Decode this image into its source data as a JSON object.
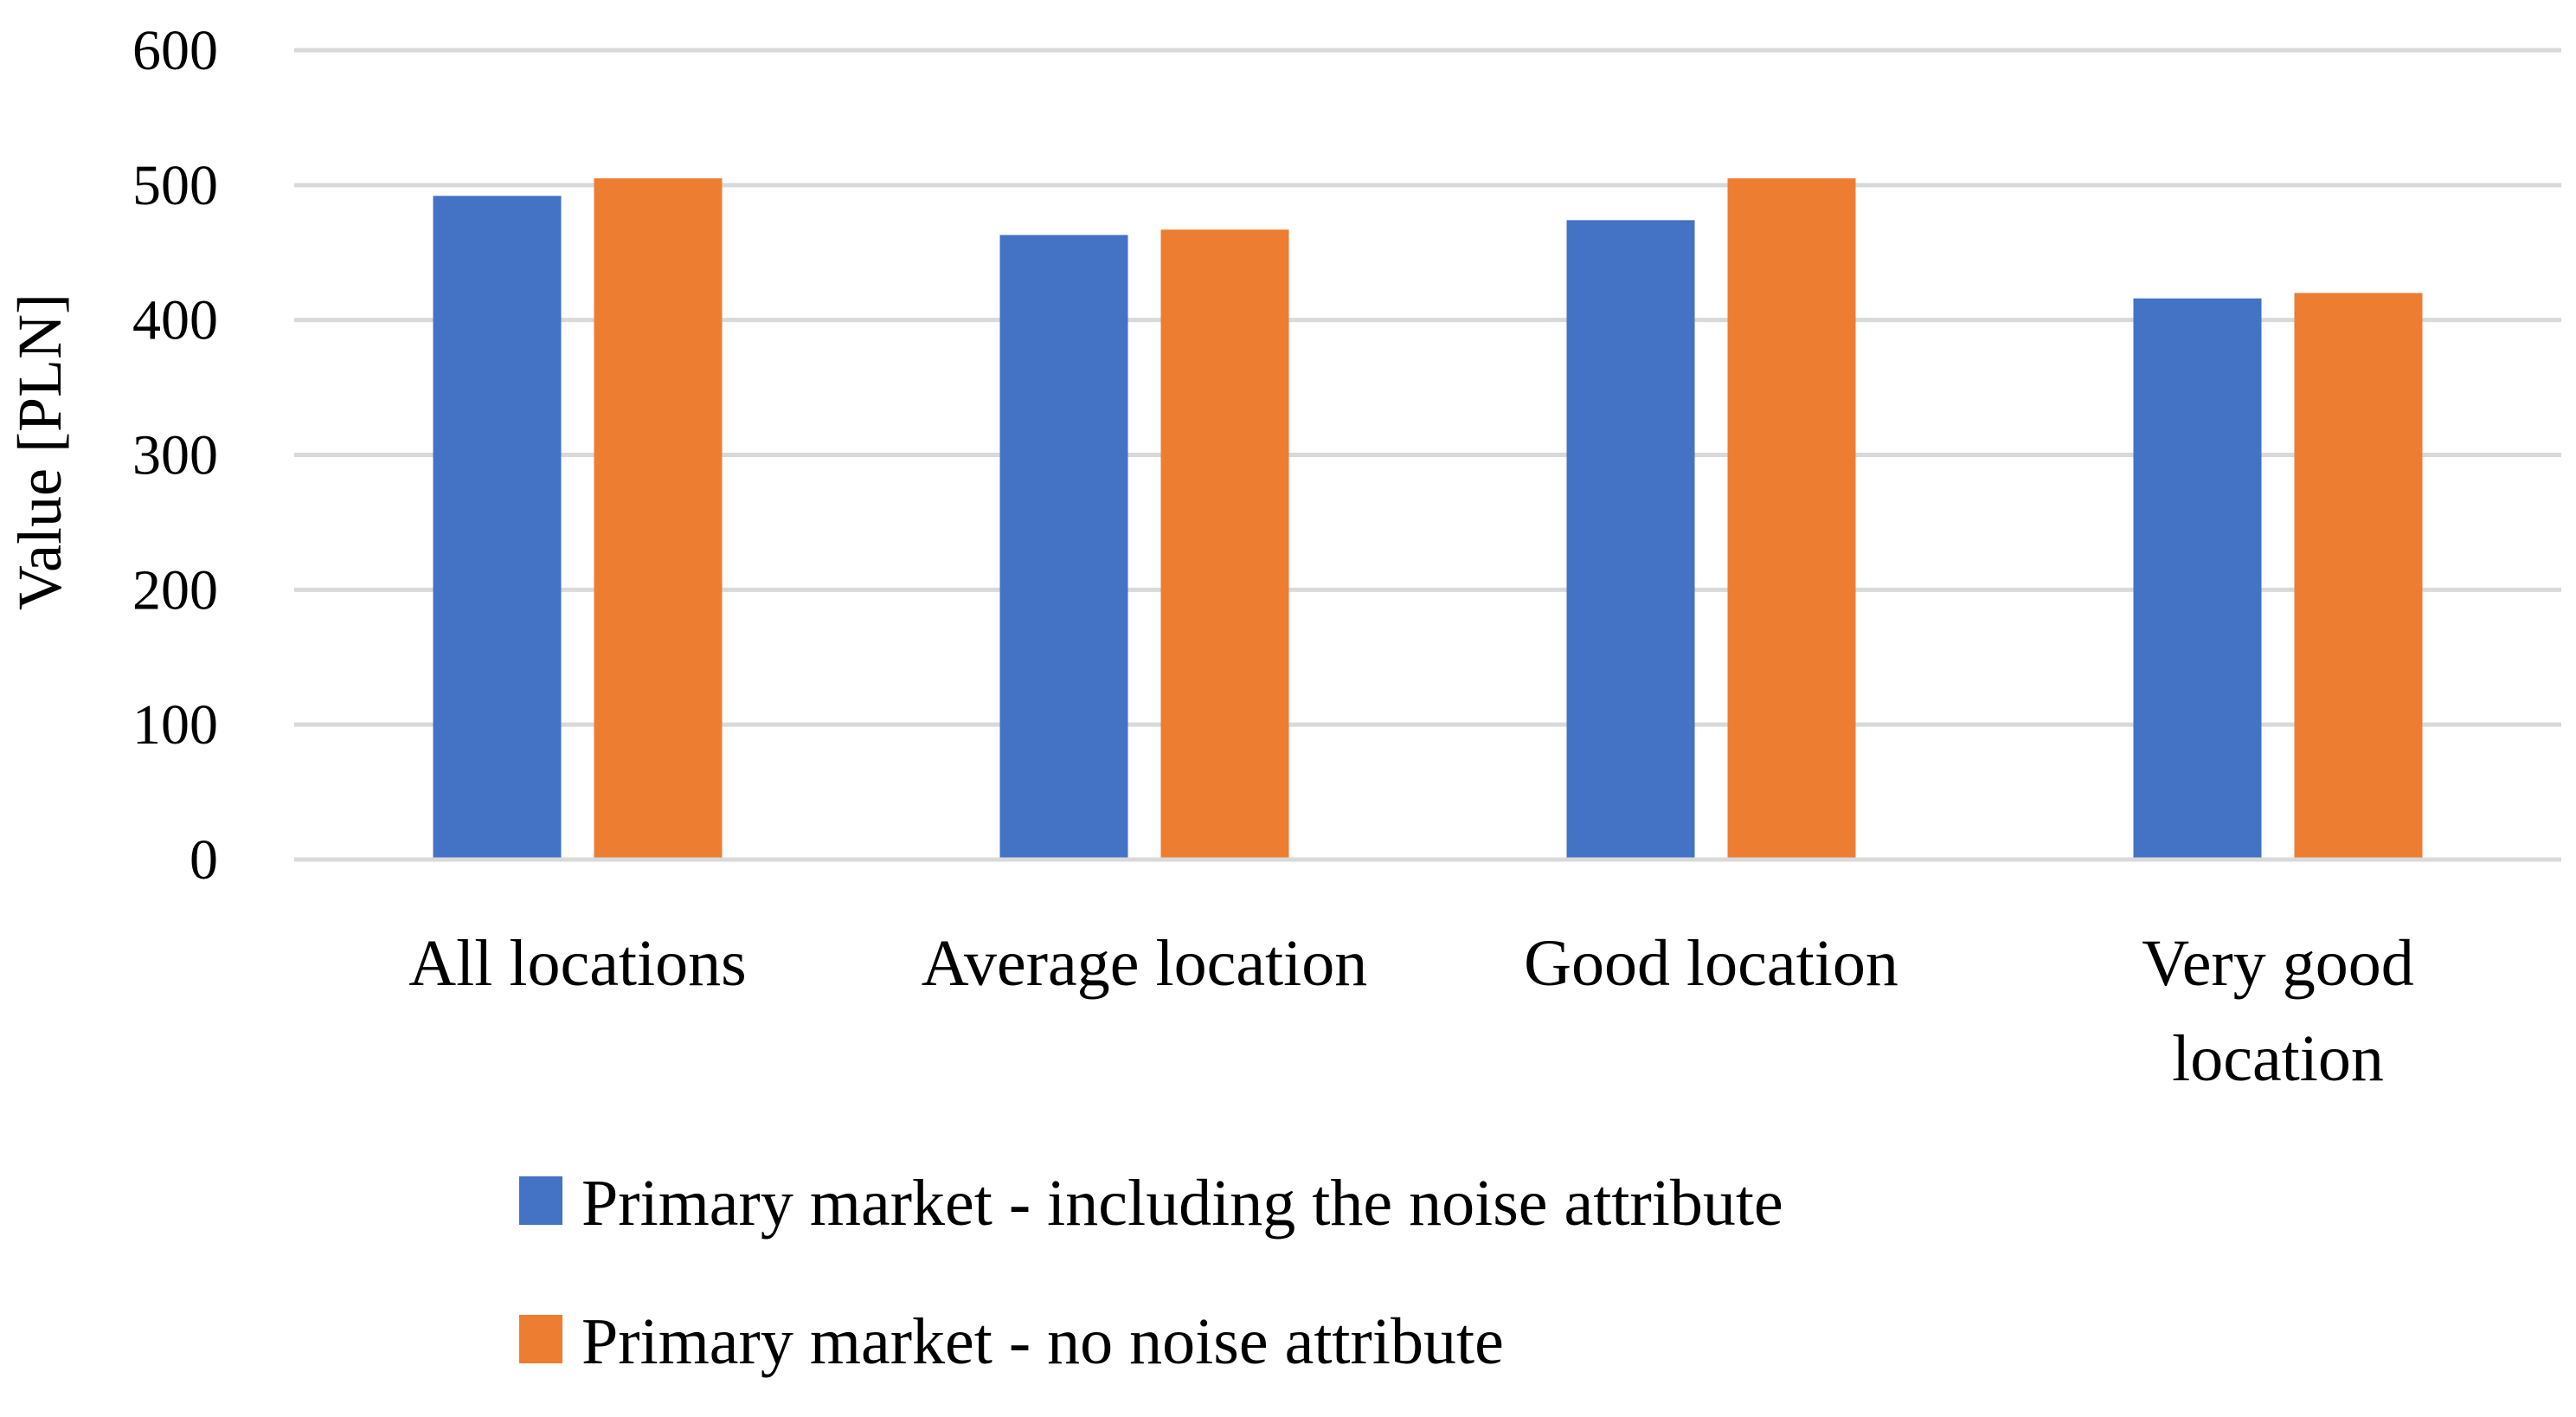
{
  "chart_data": {
    "type": "bar",
    "categories": [
      [
        "All locations"
      ],
      [
        "Average location"
      ],
      [
        "Good location"
      ],
      [
        "Very good",
        "location"
      ]
    ],
    "series": [
      {
        "name": "Primary market - including the noise attribute",
        "color": "#4472C4",
        "values": [
          492,
          463,
          474,
          416
        ]
      },
      {
        "name": "Primary market - no noise attribute",
        "color": "#ED7D31",
        "values": [
          505,
          467,
          505,
          420
        ]
      }
    ],
    "title": "",
    "xlabel": "",
    "ylabel": "Value [PLN]",
    "ylim": [
      0,
      600
    ],
    "yticks": [
      0,
      100,
      200,
      300,
      400,
      500,
      600
    ],
    "grid": true,
    "grid_color": "#D9D9D9",
    "legend_position": "bottom"
  }
}
